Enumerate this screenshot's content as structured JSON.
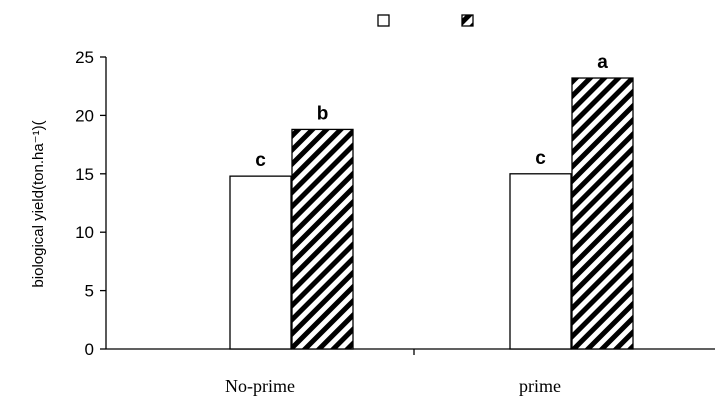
{
  "chart_data": {
    "type": "bar",
    "title": "",
    "xlabel": "",
    "ylabel": "biological yield(ton.ha⁻¹)(",
    "ylim": [
      0,
      25
    ],
    "yticks": [
      0,
      5,
      10,
      15,
      20,
      25
    ],
    "categories": [
      "No-prime",
      "prime"
    ],
    "series": [
      {
        "values": [
          14.8,
          15.0
        ],
        "labels": [
          "c",
          "c"
        ],
        "fill": "white"
      },
      {
        "values": [
          18.8,
          23.2
        ],
        "labels": [
          "b",
          "a"
        ],
        "fill": "diagonal-hatch"
      }
    ],
    "legend": {
      "placement": "top-center",
      "entries": [
        "",
        ""
      ]
    },
    "grid": false
  },
  "colors": {
    "axis": "#000000",
    "bar_stroke": "#000000",
    "bar_fill": "#ffffff",
    "hatch": "#000000"
  }
}
